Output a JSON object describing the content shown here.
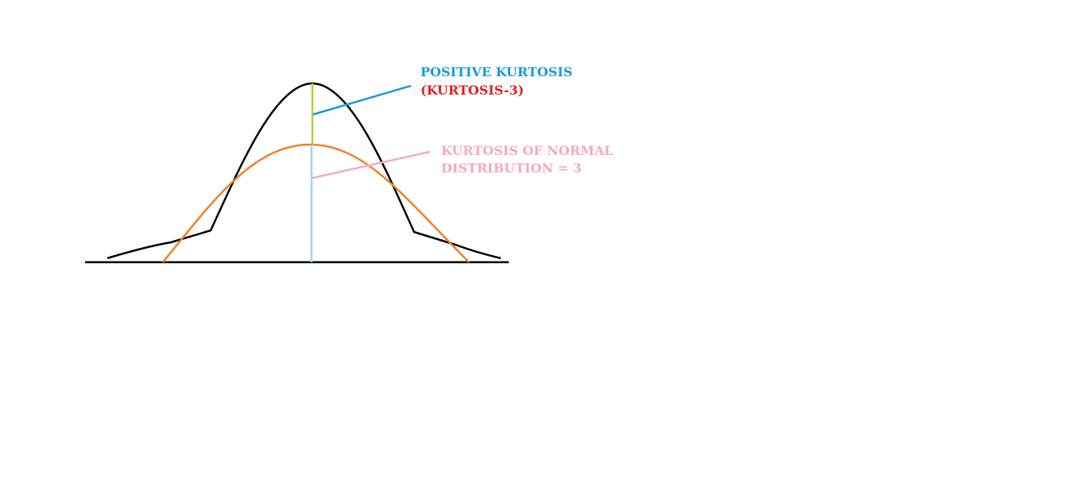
{
  "labels": {
    "positive_line1": "POSITIVE KURTOSIS",
    "positive_line2": "(KURTOSIS-3)",
    "normal_line1": "KURTOSIS OF NORMAL",
    "normal_line2": "DISTRIBUTION = 3"
  },
  "colors": {
    "background": "#ffffff",
    "baseline": "#000000",
    "leptokurtic_curve": "#000000",
    "normal_curve": "#f07f2a",
    "excess_segment": "#a8d63a",
    "normal_segment": "#9fd4ea",
    "positive_label": "#1a9bd8",
    "kurtosis_minus_label": "#e02020",
    "normal_label": "#f5a8c6",
    "positive_pointer": "#1a9bd8",
    "normal_pointer": "#f5a8c6"
  }
}
